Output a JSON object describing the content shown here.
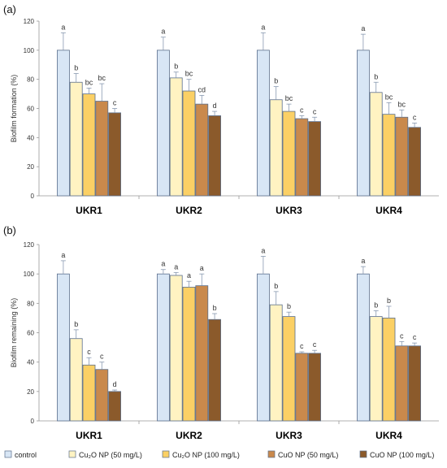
{
  "chart_data": [
    {
      "type": "bar",
      "panel_label": "(a)",
      "ylabel": "Biofilm formation (%)",
      "ylim": [
        0,
        120
      ],
      "yticks": [
        0,
        20,
        40,
        60,
        80,
        100,
        120
      ],
      "categories": [
        "UKR1",
        "UKR2",
        "UKR3",
        "UKR4"
      ],
      "series": [
        {
          "name": "control",
          "values": [
            100,
            100,
            100,
            100
          ],
          "errors": [
            12,
            9,
            12,
            11
          ],
          "letters": [
            "a",
            "a",
            "a",
            "a"
          ]
        },
        {
          "name": "Cu₂O NP (50 mg/L)",
          "values": [
            78,
            81,
            66,
            71
          ],
          "errors": [
            6,
            4,
            9,
            7
          ],
          "letters": [
            "b",
            "b",
            "b",
            "b"
          ]
        },
        {
          "name": "Cu₂O NP (100 mg/L)",
          "values": [
            70,
            72,
            58,
            56
          ],
          "errors": [
            4,
            8,
            5,
            8
          ],
          "letters": [
            "bc",
            "bc",
            "bc",
            "bc"
          ]
        },
        {
          "name": "CuO NP (50 mg/L)",
          "values": [
            65,
            63,
            53,
            54
          ],
          "errors": [
            12,
            6,
            2,
            5
          ],
          "letters": [
            "bc",
            "cd",
            "c",
            "bc"
          ]
        },
        {
          "name": "CuO NP (100 mg/L)",
          "values": [
            57,
            55,
            51,
            47
          ],
          "errors": [
            3,
            3,
            3,
            3
          ],
          "letters": [
            "c",
            "d",
            "c",
            "c"
          ]
        }
      ]
    },
    {
      "type": "bar",
      "panel_label": "(b)",
      "ylabel": "Biofilm remaining (%)",
      "ylim": [
        0,
        120
      ],
      "yticks": [
        0,
        20,
        40,
        60,
        80,
        100,
        120
      ],
      "categories": [
        "UKR1",
        "UKR2",
        "UKR3",
        "UKR4"
      ],
      "series": [
        {
          "name": "control",
          "values": [
            100,
            100,
            100,
            100
          ],
          "errors": [
            9,
            3,
            12,
            5
          ],
          "letters": [
            "a",
            "a",
            "a",
            "a"
          ]
        },
        {
          "name": "Cu₂O NP (50 mg/L)",
          "values": [
            56,
            99,
            79,
            71
          ],
          "errors": [
            6,
            2,
            9,
            4
          ],
          "letters": [
            "b",
            "a",
            "b",
            "b"
          ]
        },
        {
          "name": "Cu₂O NP (100 mg/L)",
          "values": [
            38,
            91,
            71,
            70
          ],
          "errors": [
            5,
            4,
            3,
            8
          ],
          "letters": [
            "c",
            "a",
            "b",
            "b"
          ]
        },
        {
          "name": "CuO NP (50 mg/L)",
          "values": [
            35,
            92,
            46,
            51
          ],
          "errors": [
            5,
            8,
            1,
            3
          ],
          "letters": [
            "c",
            "a",
            "c",
            "c"
          ]
        },
        {
          "name": "CuO NP (100 mg/L)",
          "values": [
            20,
            69,
            46,
            51
          ],
          "errors": [
            1,
            4,
            2,
            2
          ],
          "letters": [
            "d",
            "b",
            "c",
            "c"
          ]
        }
      ]
    }
  ],
  "legend": {
    "items": [
      {
        "label": "control",
        "color": "#d8e6f5"
      },
      {
        "label": "Cu₂O NP (50 mg/L)",
        "color": "#fff3c2"
      },
      {
        "label": "Cu₂O NP (100 mg/L)",
        "color": "#fbd065"
      },
      {
        "label": "CuO NP (50 mg/L)",
        "color": "#c9894c"
      },
      {
        "label": "CuO NP (100 mg/L)",
        "color": "#8b5a2b"
      }
    ]
  },
  "colors": {
    "bar_stroke": "#5b6f8c",
    "error_bar": "#8899b0",
    "axis": "#999999"
  }
}
